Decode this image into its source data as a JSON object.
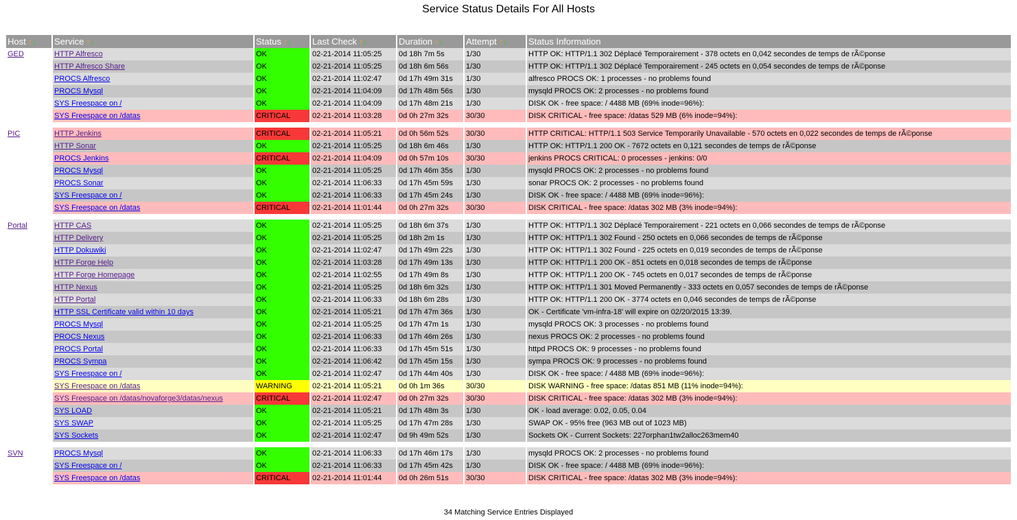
{
  "page_title": "Service Status Details For All Hosts",
  "columns": [
    "Host",
    "Service",
    "Status",
    "Last Check",
    "Duration",
    "Attempt",
    "Status Information"
  ],
  "sort_arrows": {
    "up": "↑",
    "down": "↓"
  },
  "status_colors": {
    "OK": "#33ff00",
    "CRITICAL": "#f83838",
    "WARNING": "#ffff00"
  },
  "groups": [
    {
      "host": "GED",
      "rows": [
        {
          "service": "HTTP Alfresco",
          "visited": true,
          "status": "OK",
          "last_check": "02-21-2014 11:05:25",
          "duration": "0d 18h 7m 5s",
          "attempt": "1/30",
          "info": "HTTP OK: HTTP/1.1 302 Déplacé Temporairement - 378 octets en 0,042 secondes de temps de rÃ©ponse"
        },
        {
          "service": "HTTP Alfresco Share",
          "visited": true,
          "status": "OK",
          "last_check": "02-21-2014 11:05:25",
          "duration": "0d 18h 6m 56s",
          "attempt": "1/30",
          "info": "HTTP OK: HTTP/1.1 302 Déplacé Temporairement - 245 octets en 0,054 secondes de temps de rÃ©ponse"
        },
        {
          "service": "PROCS Alfresco",
          "visited": false,
          "status": "OK",
          "last_check": "02-21-2014 11:02:47",
          "duration": "0d 17h 49m 31s",
          "attempt": "1/30",
          "info": "alfresco PROCS OK: 1 processes - no problems found"
        },
        {
          "service": "PROCS Mysql",
          "visited": false,
          "status": "OK",
          "last_check": "02-21-2014 11:04:09",
          "duration": "0d 17h 48m 56s",
          "attempt": "1/30",
          "info": "mysqld PROCS OK: 2 processes - no problems found"
        },
        {
          "service": "SYS Freespace on /",
          "visited": false,
          "status": "OK",
          "last_check": "02-21-2014 11:04:09",
          "duration": "0d 17h 48m 21s",
          "attempt": "1/30",
          "info": "DISK OK - free space: / 4488 MB (69% inode=96%):"
        },
        {
          "service": "SYS Freespace on /datas",
          "visited": false,
          "status": "CRITICAL",
          "last_check": "02-21-2014 11:03:28",
          "duration": "0d 0h 27m 32s",
          "attempt": "30/30",
          "info": "DISK CRITICAL - free space: /datas 529 MB (6% inode=94%):"
        }
      ]
    },
    {
      "host": "PIC",
      "rows": [
        {
          "service": "HTTP Jenkins",
          "visited": true,
          "status": "CRITICAL",
          "last_check": "02-21-2014 11:05:21",
          "duration": "0d 0h 56m 52s",
          "attempt": "30/30",
          "info": "HTTP CRITICAL: HTTP/1.1 503 Service Temporarily Unavailable - 570 octets en 0,022 secondes de temps de rÃ©ponse"
        },
        {
          "service": "HTTP Sonar",
          "visited": true,
          "status": "OK",
          "last_check": "02-21-2014 11:05:25",
          "duration": "0d 18h 6m 46s",
          "attempt": "1/30",
          "info": "HTTP OK: HTTP/1.1 200 OK - 7672 octets en 0,121 secondes de temps de rÃ©ponse"
        },
        {
          "service": "PROCS Jenkins",
          "visited": false,
          "status": "CRITICAL",
          "last_check": "02-21-2014 11:04:09",
          "duration": "0d 0h 57m 10s",
          "attempt": "30/30",
          "info": "jenkins PROCS CRITICAL: 0 processes - jenkins: 0/0"
        },
        {
          "service": "PROCS Mysql",
          "visited": false,
          "status": "OK",
          "last_check": "02-21-2014 11:05:25",
          "duration": "0d 17h 46m 35s",
          "attempt": "1/30",
          "info": "mysqld PROCS OK: 2 processes - no problems found"
        },
        {
          "service": "PROCS Sonar",
          "visited": false,
          "status": "OK",
          "last_check": "02-21-2014 11:06:33",
          "duration": "0d 17h 45m 59s",
          "attempt": "1/30",
          "info": "sonar PROCS OK: 2 processes - no problems found"
        },
        {
          "service": "SYS Freespace on /",
          "visited": false,
          "status": "OK",
          "last_check": "02-21-2014 11:06:33",
          "duration": "0d 17h 45m 24s",
          "attempt": "1/30",
          "info": "DISK OK - free space: / 4488 MB (69% inode=96%):"
        },
        {
          "service": "SYS Freespace on /datas",
          "visited": false,
          "status": "CRITICAL",
          "last_check": "02-21-2014 11:01:44",
          "duration": "0d 0h 27m 32s",
          "attempt": "30/30",
          "info": "DISK CRITICAL - free space: /datas 302 MB (3% inode=94%):"
        }
      ]
    },
    {
      "host": "Portal",
      "rows": [
        {
          "service": "HTTP CAS",
          "visited": true,
          "status": "OK",
          "last_check": "02-21-2014 11:05:25",
          "duration": "0d 18h 6m 37s",
          "attempt": "1/30",
          "info": "HTTP OK: HTTP/1.1 302 Déplacé Temporairement - 221 octets en 0,066 secondes de temps de rÃ©ponse"
        },
        {
          "service": "HTTP Delivery",
          "visited": true,
          "status": "OK",
          "last_check": "02-21-2014 11:05:25",
          "duration": "0d 18h 2m 1s",
          "attempt": "1/30",
          "info": "HTTP OK: HTTP/1.1 302 Found - 250 octets en 0,066 secondes de temps de rÃ©ponse"
        },
        {
          "service": "HTTP Dokuwiki",
          "visited": false,
          "status": "OK",
          "last_check": "02-21-2014 11:02:47",
          "duration": "0d 17h 49m 22s",
          "attempt": "1/30",
          "info": "HTTP OK: HTTP/1.1 302 Found - 225 octets en 0,019 secondes de temps de rÃ©ponse"
        },
        {
          "service": "HTTP Forge Help",
          "visited": true,
          "status": "OK",
          "last_check": "02-21-2014 11:03:28",
          "duration": "0d 17h 49m 13s",
          "attempt": "1/30",
          "info": "HTTP OK: HTTP/1.1 200 OK - 851 octets en 0,018 secondes de temps de rÃ©ponse"
        },
        {
          "service": "HTTP Forge Homepage",
          "visited": true,
          "status": "OK",
          "last_check": "02-21-2014 11:02:55",
          "duration": "0d 17h 49m 8s",
          "attempt": "1/30",
          "info": "HTTP OK: HTTP/1.1 200 OK - 745 octets en 0,017 secondes de temps de rÃ©ponse"
        },
        {
          "service": "HTTP Nexus",
          "visited": true,
          "status": "OK",
          "last_check": "02-21-2014 11:05:25",
          "duration": "0d 18h 6m 32s",
          "attempt": "1/30",
          "info": "HTTP OK: HTTP/1.1 301 Moved Permanently - 333 octets en 0,057 secondes de temps de rÃ©ponse"
        },
        {
          "service": "HTTP Portal",
          "visited": true,
          "status": "OK",
          "last_check": "02-21-2014 11:06:33",
          "duration": "0d 18h 6m 28s",
          "attempt": "1/30",
          "info": "HTTP OK: HTTP/1.1 200 OK - 3774 octets en 0,046 secondes de temps de rÃ©ponse"
        },
        {
          "service": "HTTP SSL Certificate valid within 10 days",
          "visited": false,
          "status": "OK",
          "last_check": "02-21-2014 11:05:21",
          "duration": "0d 17h 47m 36s",
          "attempt": "1/30",
          "info": "OK - Certificate 'vm-infra-18' will expire on 02/20/2015 13:39."
        },
        {
          "service": "PROCS Mysql",
          "visited": false,
          "status": "OK",
          "last_check": "02-21-2014 11:05:25",
          "duration": "0d 17h 47m 1s",
          "attempt": "1/30",
          "info": "mysqld PROCS OK: 3 processes - no problems found"
        },
        {
          "service": "PROCS Nexus",
          "visited": false,
          "status": "OK",
          "last_check": "02-21-2014 11:06:33",
          "duration": "0d 17h 46m 26s",
          "attempt": "1/30",
          "info": "nexus PROCS OK: 2 processes - no problems found"
        },
        {
          "service": "PROCS Portal",
          "visited": false,
          "status": "OK",
          "last_check": "02-21-2014 11:06:33",
          "duration": "0d 17h 45m 51s",
          "attempt": "1/30",
          "info": "httpd PROCS OK: 9 processes - no problems found"
        },
        {
          "service": "PROCS Sympa",
          "visited": false,
          "status": "OK",
          "last_check": "02-21-2014 11:06:42",
          "duration": "0d 17h 45m 15s",
          "attempt": "1/30",
          "info": "sympa PROCS OK: 9 processes - no problems found"
        },
        {
          "service": "SYS Freespace on /",
          "visited": false,
          "status": "OK",
          "last_check": "02-21-2014 11:02:47",
          "duration": "0d 17h 44m 40s",
          "attempt": "1/30",
          "info": "DISK OK - free space: / 4488 MB (69% inode=96%):"
        },
        {
          "service": "SYS Freespace on /datas",
          "visited": true,
          "status": "WARNING",
          "last_check": "02-21-2014 11:05:21",
          "duration": "0d 0h 1m 36s",
          "attempt": "30/30",
          "info": "DISK WARNING - free space: /datas 851 MB (11% inode=94%):"
        },
        {
          "service": "SYS Freespace on /datas/novaforge3/datas/nexus",
          "visited": true,
          "status": "CRITICAL",
          "last_check": "02-21-2014 11:02:47",
          "duration": "0d 0h 27m 32s",
          "attempt": "30/30",
          "info": "DISK CRITICAL - free space: /datas 302 MB (3% inode=94%):"
        },
        {
          "service": "SYS LOAD",
          "visited": false,
          "status": "OK",
          "last_check": "02-21-2014 11:05:21",
          "duration": "0d 17h 48m 3s",
          "attempt": "1/30",
          "info": "OK - load average: 0.02, 0.05, 0.04"
        },
        {
          "service": "SYS SWAP",
          "visited": false,
          "status": "OK",
          "last_check": "02-21-2014 11:05:25",
          "duration": "0d 17h 47m 28s",
          "attempt": "1/30",
          "info": "SWAP OK - 95% free (963 MB out of 1023 MB)"
        },
        {
          "service": "SYS Sockets",
          "visited": false,
          "status": "OK",
          "last_check": "02-21-2014 11:02:47",
          "duration": "0d 9h 49m 52s",
          "attempt": "1/30",
          "info": "Sockets OK - Current Sockets: 227orphan1tw2alloc263mem40"
        }
      ]
    },
    {
      "host": "SVN",
      "rows": [
        {
          "service": "PROCS Mysql",
          "visited": false,
          "status": "OK",
          "last_check": "02-21-2014 11:06:33",
          "duration": "0d 17h 46m 17s",
          "attempt": "1/30",
          "info": "mysqld PROCS OK: 2 processes - no problems found"
        },
        {
          "service": "SYS Freespace on /",
          "visited": false,
          "status": "OK",
          "last_check": "02-21-2014 11:06:33",
          "duration": "0d 17h 45m 42s",
          "attempt": "1/30",
          "info": "DISK OK - free space: / 4488 MB (69% inode=96%):"
        },
        {
          "service": "SYS Freespace on /datas",
          "visited": false,
          "status": "CRITICAL",
          "last_check": "02-21-2014 11:01:44",
          "duration": "0d 0h 26m 51s",
          "attempt": "30/30",
          "info": "DISK CRITICAL - free space: /datas 302 MB (3% inode=94%):"
        }
      ]
    }
  ],
  "footer": "34 Matching Service Entries Displayed"
}
